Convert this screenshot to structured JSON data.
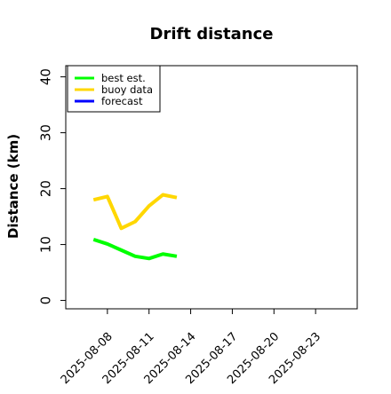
{
  "colors": {
    "best_est": "#00ff00",
    "buoy_data": "#ffd700",
    "forecast": "#0000ff",
    "highlight_tick": "#228b22"
  },
  "chart_data": {
    "type": "line",
    "title": "Drift distance",
    "xlabel": "",
    "ylabel": "Distance (km)",
    "xlim": [
      "2025-08-05T00:00",
      "2025-08-26T00:00"
    ],
    "ylim": [
      -1.5,
      42
    ],
    "y_ticks": [
      0,
      10,
      20,
      30,
      40
    ],
    "x_ticks": [
      "2025-08-08",
      "2025-08-11",
      "2025-08-14",
      "2025-08-17",
      "2025-08-20",
      "2025-08-23"
    ],
    "highlighted_x_tick": "2025-08-14",
    "grid": false,
    "legend": {
      "placement": "top-left",
      "entries": [
        "best est.",
        "buoy data",
        "forecast"
      ]
    },
    "series": [
      {
        "name": "buoy data",
        "color_key": "buoy_data",
        "x": [
          "2025-08-07T00:00",
          "2025-08-08T00:00",
          "2025-08-09T00:00",
          "2025-08-10T00:00",
          "2025-08-11T00:00",
          "2025-08-12T00:00",
          "2025-08-13T00:00"
        ],
        "y": [
          18,
          18.6,
          12.9,
          14.1,
          16.9,
          18.9,
          18.4
        ]
      },
      {
        "name": "best est.",
        "color_key": "best_est",
        "x": [
          "2025-08-07T00:00",
          "2025-08-08T00:00",
          "2025-08-09T00:00",
          "2025-08-10T00:00",
          "2025-08-11T00:00",
          "2025-08-12T00:00",
          "2025-08-13T00:00"
        ],
        "y": [
          10.9,
          10.1,
          9.0,
          7.9,
          7.5,
          8.3,
          7.9
        ]
      },
      {
        "name": "forecast",
        "color_key": "forecast",
        "x": [],
        "y": []
      }
    ]
  }
}
